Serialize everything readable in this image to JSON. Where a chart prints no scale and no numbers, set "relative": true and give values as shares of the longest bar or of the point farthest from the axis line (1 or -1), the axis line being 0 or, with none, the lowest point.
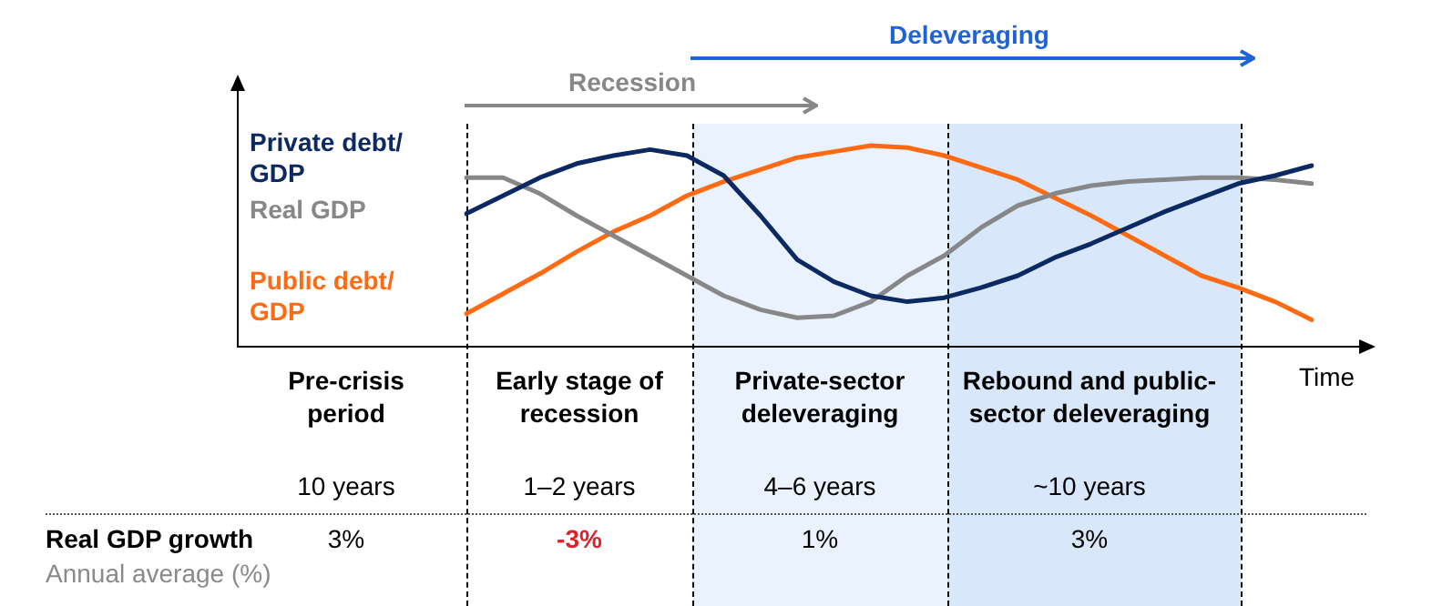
{
  "chart_data": {
    "type": "line",
    "relative": true,
    "line_style": "solid",
    "xlabel": "Time",
    "categories": [
      null,
      null,
      null,
      null,
      null,
      null,
      null,
      null,
      null,
      null,
      null,
      null,
      null,
      null,
      null,
      null,
      null,
      null,
      null,
      null,
      null,
      null,
      null,
      null
    ],
    "series": [
      {
        "name": "Private debt/ GDP",
        "color": "#0c2a61",
        "values": [
          0.66,
          0.75,
          0.84,
          0.91,
          0.95,
          0.98,
          0.95,
          0.85,
          0.65,
          0.43,
          0.32,
          0.25,
          0.22,
          0.24,
          0.29,
          0.35,
          0.44,
          0.51,
          0.59,
          0.67,
          0.74,
          0.81,
          0.85,
          0.9
        ]
      },
      {
        "name": "Real GDP",
        "color": "#878787",
        "values": [
          0.84,
          0.84,
          0.76,
          0.65,
          0.55,
          0.45,
          0.35,
          0.25,
          0.18,
          0.14,
          0.15,
          0.22,
          0.35,
          0.45,
          0.59,
          0.7,
          0.76,
          0.8,
          0.82,
          0.83,
          0.84,
          0.84,
          0.83,
          0.81
        ]
      },
      {
        "name": "Public debt/ GDP",
        "color": "#ff6a13",
        "values": [
          0.16,
          0.26,
          0.36,
          0.47,
          0.57,
          0.65,
          0.75,
          0.82,
          0.88,
          0.94,
          0.97,
          1.0,
          0.99,
          0.95,
          0.89,
          0.83,
          0.74,
          0.65,
          0.55,
          0.45,
          0.35,
          0.29,
          0.22,
          0.13
        ]
      }
    ],
    "annotations": [
      "Recession",
      "Deleveraging",
      "Pre-crisis period",
      "Early stage of recession",
      "Private-sector deleveraging",
      "Rebound and public-sector deleveraging",
      "10 years",
      "1–2 years",
      "4–6 years",
      "~10 years",
      "Real GDP growth",
      "Annual average (%)",
      "3%",
      "-3%",
      "1%",
      "3%"
    ]
  }
}
